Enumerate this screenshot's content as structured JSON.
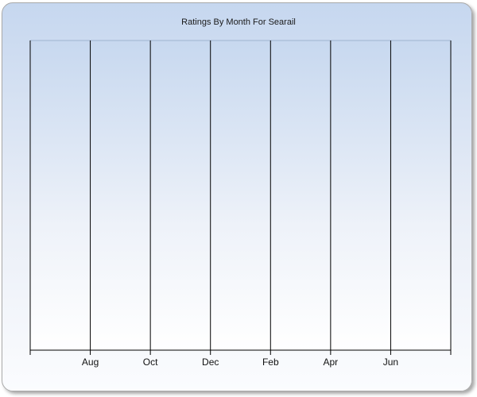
{
  "chart_data": {
    "type": "line",
    "title": "Ratings By Month For Searail",
    "xlabel": "",
    "ylabel": "",
    "categories": [
      "Aug",
      "Oct",
      "Dec",
      "Feb",
      "Apr",
      "Jun"
    ],
    "series": [],
    "grid": true,
    "legend": "none",
    "colors": {
      "plot_top": "#c7d8ef",
      "plot_bottom": "#ffffff",
      "gridline": "#000000",
      "axis": "#000000"
    }
  }
}
